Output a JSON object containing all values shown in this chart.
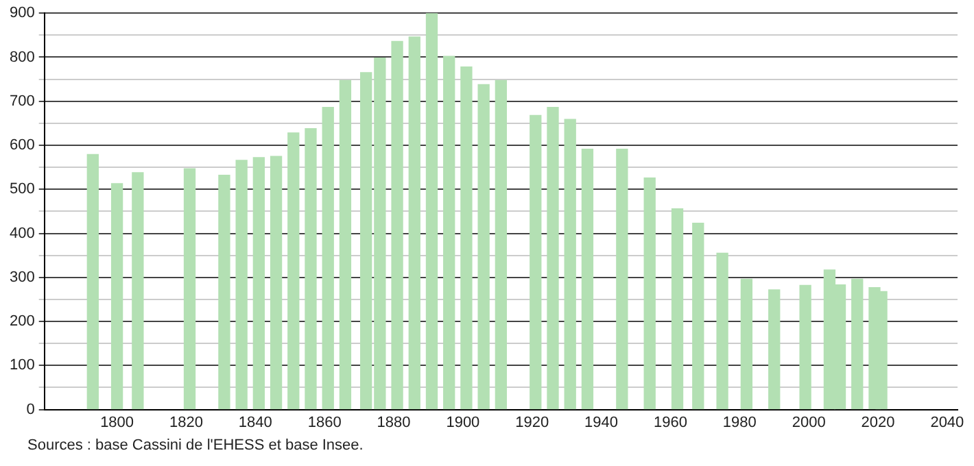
{
  "chart_data": {
    "type": "bar",
    "color": "#b3e0b3",
    "x": [
      1793,
      1800,
      1806,
      1821,
      1831,
      1836,
      1841,
      1846,
      1851,
      1856,
      1861,
      1866,
      1872,
      1876,
      1881,
      1886,
      1891,
      1896,
      1901,
      1906,
      1911,
      1921,
      1926,
      1931,
      1936,
      1946,
      1954,
      1962,
      1968,
      1975,
      1982,
      1990,
      1999,
      2006,
      2009,
      2014,
      2019,
      2021
    ],
    "values": [
      579,
      513,
      538,
      547,
      532,
      566,
      572,
      575,
      628,
      638,
      686,
      747,
      765,
      798,
      836,
      846,
      900,
      802,
      778,
      738,
      747,
      668,
      686,
      659,
      591,
      591,
      526,
      456,
      423,
      355,
      296,
      272,
      282,
      317,
      283,
      296,
      277,
      268
    ],
    "xlim": [
      1779,
      2043
    ],
    "xticks": [
      1800,
      1820,
      1840,
      1860,
      1880,
      1900,
      1920,
      1940,
      1960,
      1980,
      2000,
      2020,
      2040
    ],
    "ylim": [
      0,
      900
    ],
    "yticks": [
      0,
      {
        "value": 50,
        "label": null
      },
      100,
      {
        "value": 150,
        "label": null
      },
      200,
      {
        "value": 250,
        "label": null
      },
      300,
      {
        "value": 350,
        "label": null
      },
      400,
      {
        "value": 450,
        "label": null
      },
      500,
      {
        "value": 550,
        "label": null
      },
      600,
      {
        "value": 650,
        "label": null
      },
      700,
      {
        "value": 750,
        "label": null
      },
      800,
      {
        "value": 850,
        "label": null
      },
      900
    ],
    "grid": true,
    "annotations": [
      "Sources : base Cassini de l'EHESS et base Insee."
    ]
  }
}
